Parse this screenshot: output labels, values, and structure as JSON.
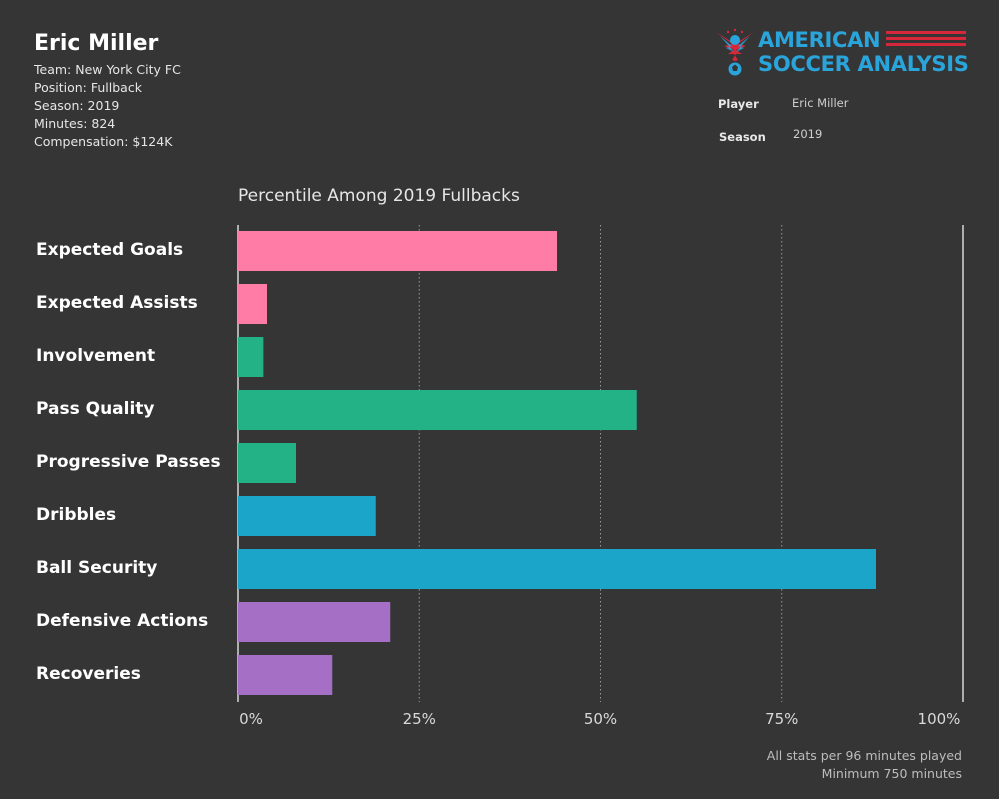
{
  "header": {
    "player_name": "Eric Miller",
    "team": "Team: New York City FC",
    "position": "Position: Fullback",
    "season": "Season: 2019",
    "minutes": "Minutes: 824",
    "compensation": "Compensation: $124K"
  },
  "logo": {
    "line1": "AMERICAN",
    "line2": "SOCCER ANALYSIS",
    "icon": "eagle-soccer-ball-icon",
    "colors": {
      "blue": "#2aa5dc",
      "red": "#d6283a"
    }
  },
  "filters": {
    "player_label": "Player",
    "player_value": "Eric Miller",
    "season_label": "Season",
    "season_value": "2019"
  },
  "chart_data": {
    "type": "bar",
    "orientation": "horizontal",
    "title": "Percentile Among 2019 Fullbacks",
    "categories": [
      "Expected Goals",
      "Expected Assists",
      "Involvement",
      "Pass Quality",
      "Progressive Passes",
      "Dribbles",
      "Ball Security",
      "Defensive Actions",
      "Recoveries"
    ],
    "values": [
      44,
      4,
      3.5,
      55,
      8,
      19,
      88,
      21,
      13
    ],
    "bar_colors": [
      "#fe7ca5",
      "#fe7ca5",
      "#22b286",
      "#22b286",
      "#22b286",
      "#1ba6c9",
      "#1ba6c9",
      "#a56fc6",
      "#a56fc6"
    ],
    "xlim": [
      0,
      100
    ],
    "ticks": [
      "0%",
      "25%",
      "50%",
      "75%",
      "100%"
    ],
    "tick_values": [
      0,
      25,
      50,
      75,
      100
    ],
    "grid": "vertical dotted",
    "xlabel": "",
    "ylabel": ""
  },
  "footnote": {
    "line1": "All stats per 96 minutes played",
    "line2": "Minimum 750 minutes"
  }
}
